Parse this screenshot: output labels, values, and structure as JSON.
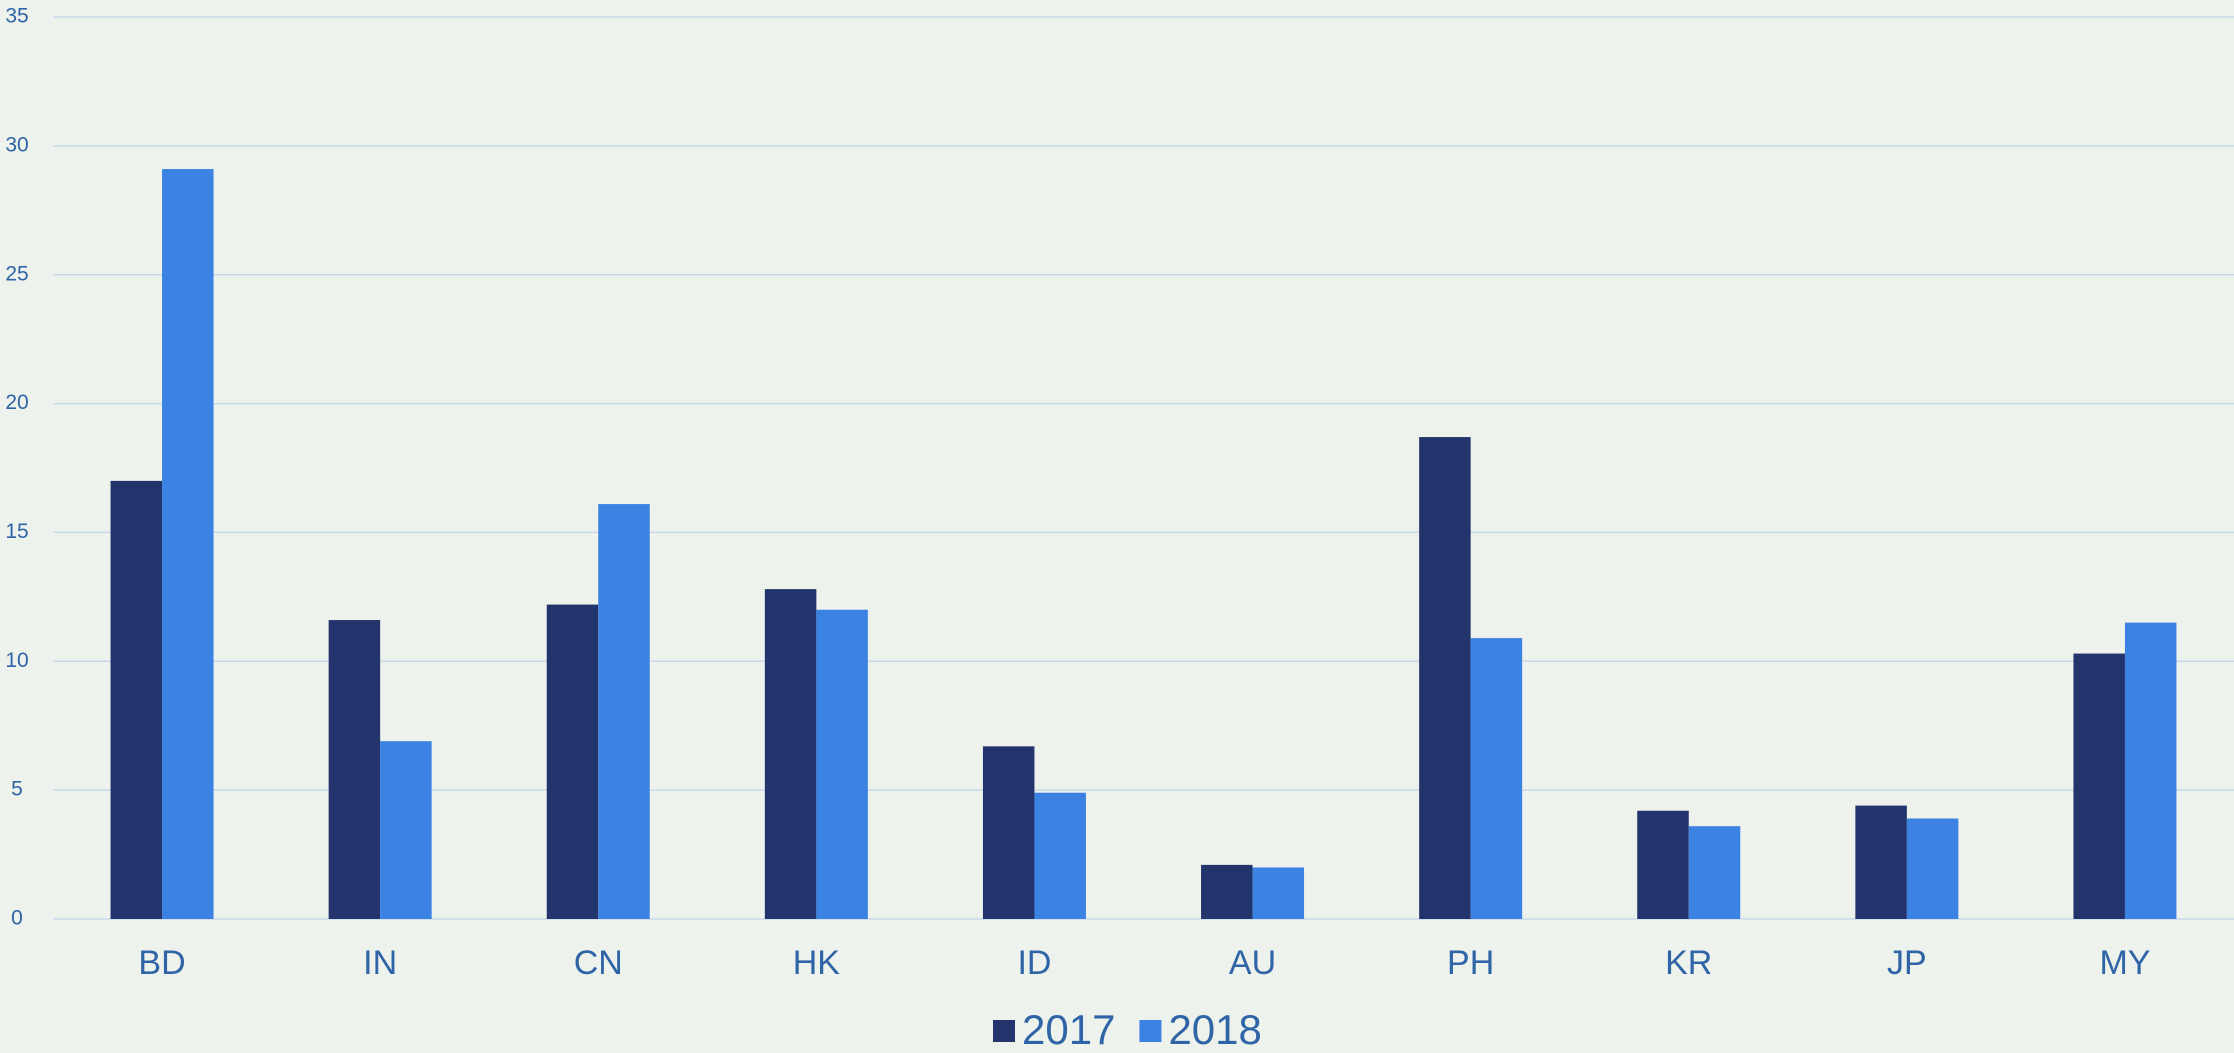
{
  "chart_data": {
    "type": "bar",
    "categories": [
      "BD",
      "IN",
      "CN",
      "HK",
      "ID",
      "AU",
      "PH",
      "KR",
      "JP",
      "MY"
    ],
    "series": [
      {
        "name": "2017",
        "color": "#23336b",
        "values": [
          17.0,
          11.6,
          12.2,
          12.8,
          6.7,
          2.1,
          18.7,
          4.2,
          4.4,
          10.3
        ]
      },
      {
        "name": "2018",
        "color": "#3b82e3",
        "values": [
          29.1,
          6.9,
          16.1,
          12.0,
          4.9,
          2.0,
          10.9,
          3.6,
          3.9,
          11.5
        ]
      }
    ],
    "ylim": [
      0,
      35
    ],
    "yticks": [
      0,
      5,
      10,
      15,
      20,
      25,
      30,
      35
    ],
    "grid": true,
    "legend": "bottom"
  }
}
